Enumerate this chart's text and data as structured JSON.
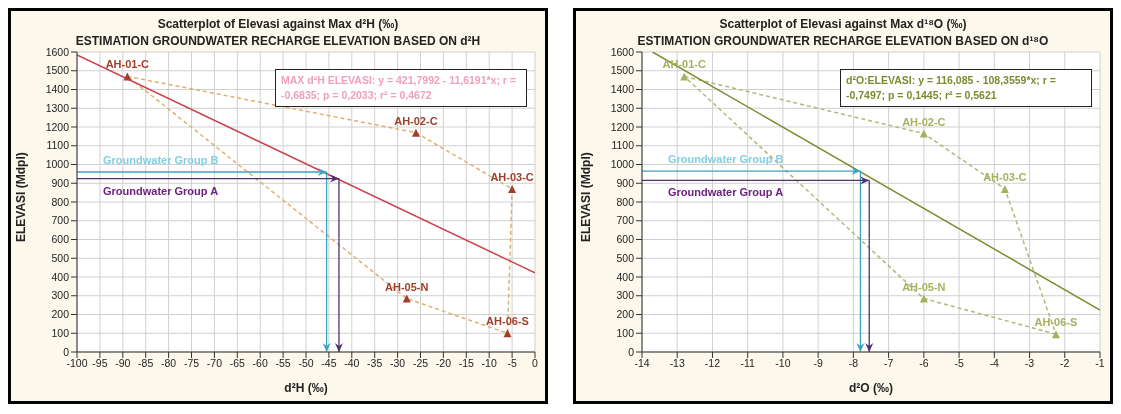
{
  "chart_data": [
    {
      "type": "scatter",
      "title": "Scatterplot of Elevasi against Max d²H (‰)",
      "subtitle": "ESTIMATION GROUNDWATER RECHARGE ELEVATION BASED ON d²H",
      "xlabel": "d²H (‰)",
      "ylabel": "ELEVASI (Mdpl)",
      "xlim": [
        -100,
        0
      ],
      "xticks": [
        -100,
        -95,
        -90,
        -85,
        -80,
        -75,
        -70,
        -65,
        -60,
        -55,
        -50,
        -45,
        -40,
        -35,
        -30,
        -25,
        -20,
        -15,
        -10,
        -5,
        0
      ],
      "ylim": [
        0,
        1600
      ],
      "yticks": [
        0,
        100,
        200,
        300,
        400,
        500,
        600,
        700,
        800,
        900,
        1000,
        1100,
        1200,
        1300,
        1400,
        1500,
        1600
      ],
      "grid": true,
      "legend": false,
      "marker": "triangle",
      "annotations": [
        "MAX d²H ELEVASI: y = 421,7992 - 11,6191*x; r = -0,6835; p = 0,2033; r² = 0,4672",
        {
          "text": "AH-01-C",
          "x": -89,
          "y": 1470
        },
        {
          "text": "AH-02-C",
          "x": -26,
          "y": 1170
        },
        {
          "text": "AH-03-C",
          "x": -5,
          "y": 870
        },
        {
          "text": "AH-05-N",
          "x": -28,
          "y": 285
        },
        {
          "text": "AH-06-S",
          "x": -6,
          "y": 100
        }
      ],
      "ref_lines": [
        {
          "axis": "y",
          "value": 960,
          "label": "Groundwater Group B",
          "color": "#40a0c0"
        },
        {
          "axis": "x",
          "value": -45.5,
          "color": "#40a0c0"
        },
        {
          "axis": "y",
          "value": 925,
          "label": "Groundwater Group A",
          "color": "#503070"
        },
        {
          "axis": "x",
          "value": -42.8,
          "color": "#503070"
        }
      ],
      "series": [
        {
          "type": "line",
          "line_style": "dashed",
          "marker": "none",
          "color": "#e0b070",
          "x": [
            -89,
            -26,
            -5
          ],
          "values": [
            1470,
            1170,
            870
          ]
        },
        {
          "type": "line",
          "line_style": "dashed",
          "marker": "none",
          "color": "#e0b070",
          "x": [
            -5,
            -6,
            -28,
            -89
          ],
          "values": [
            870,
            100,
            285,
            1470
          ]
        },
        {
          "type": "line",
          "marker": "none",
          "color": "#c8404a",
          "x": [
            -100,
            0
          ],
          "values": [
            1584,
            422
          ]
        },
        {
          "color": "#a0402a",
          "x": [
            -89,
            -26,
            -5,
            -28,
            -6
          ],
          "values": [
            1470,
            1170,
            870,
            285,
            100
          ]
        }
      ]
    },
    {
      "type": "scatter",
      "title": "Scatterplot of Elevasi against Max d¹⁸O (‰)",
      "subtitle": "ESTIMATION GROUNDWATER RECHARGE ELEVATION BASED ON d¹⁸O",
      "xlabel": "d²O (‰)",
      "ylabel": "ELEVASI (Mdpl)",
      "xlim": [
        -14,
        -1
      ],
      "xticks": [
        -14,
        -13,
        -12,
        -11,
        -10,
        -9,
        -8,
        -7,
        -6,
        -5,
        -4,
        -3,
        -2,
        -1
      ],
      "ylim": [
        0,
        1600
      ],
      "yticks": [
        0,
        100,
        200,
        300,
        400,
        500,
        600,
        700,
        800,
        900,
        1000,
        1100,
        1200,
        1300,
        1400,
        1500,
        1600
      ],
      "grid": true,
      "legend": false,
      "marker": "triangle",
      "annotations": [
        "d²O:ELEVASI:   y = 116,085 - 108,3559*x; r = -0,7497; p = 0,1445; r² = 0,5621",
        {
          "text": "AH-01-C",
          "x": -12.8,
          "y": 1470
        },
        {
          "text": "AH-02-C",
          "x": -6,
          "y": 1165
        },
        {
          "text": "AH-03-C",
          "x": -3.7,
          "y": 870
        },
        {
          "text": "AH-05-N",
          "x": -6,
          "y": 285
        },
        {
          "text": "AH-06-S",
          "x": -2.25,
          "y": 95
        }
      ],
      "ref_lines": [
        {
          "axis": "y",
          "value": 965,
          "label": "Groundwater Group B",
          "color": "#40a0c0"
        },
        {
          "axis": "x",
          "value": -7.8,
          "color": "#40a0c0"
        },
        {
          "axis": "y",
          "value": 915,
          "label": "Groundwater Group A",
          "color": "#503070"
        },
        {
          "axis": "x",
          "value": -7.55,
          "color": "#503070"
        }
      ],
      "series": [
        {
          "type": "line",
          "line_style": "dashed",
          "marker": "none",
          "color": "#b0b878",
          "x": [
            -12.8,
            -6,
            -3.7,
            -2.25
          ],
          "values": [
            1470,
            1165,
            870,
            95
          ]
        },
        {
          "type": "line",
          "line_style": "dashed",
          "marker": "none",
          "color": "#b0b878",
          "x": [
            -2.25,
            -6,
            -12.8
          ],
          "values": [
            95,
            285,
            1470
          ]
        },
        {
          "type": "line",
          "marker": "none",
          "color": "#7a8c30",
          "x": [
            -13.7,
            -1
          ],
          "values": [
            1600,
            224
          ]
        },
        {
          "color": "#a8b060",
          "x": [
            -12.8,
            -6,
            -3.7,
            -6,
            -2.25
          ],
          "values": [
            1470,
            1165,
            870,
            285,
            95
          ]
        }
      ]
    }
  ]
}
